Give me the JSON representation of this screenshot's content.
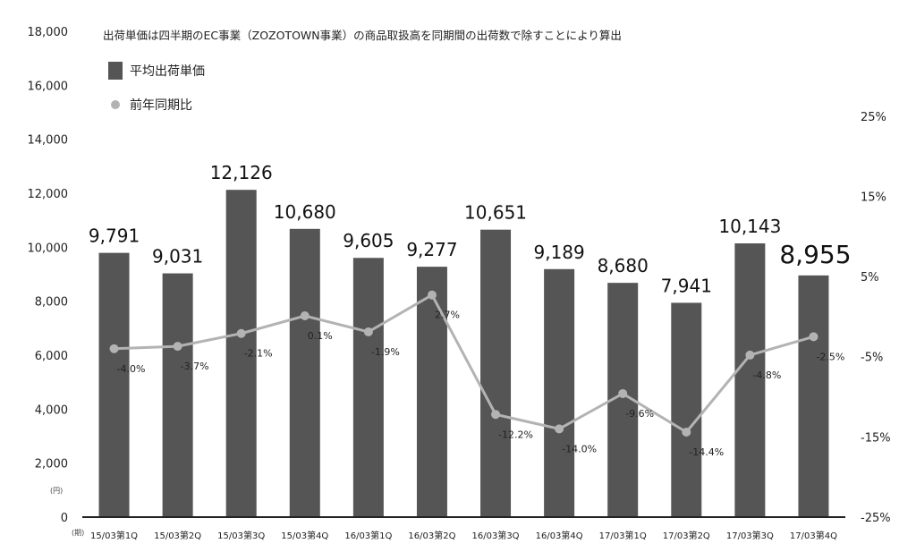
{
  "chart_data": {
    "type": "bar",
    "title": "出荷単価は四半期のEC事業（ZOZOTOWN事業）の商品取扱高を同期間の出荷数で除すことにより算出",
    "left_unit": "(円)",
    "x_unit": "(期)",
    "categories": [
      "15/03第1Q",
      "15/03第2Q",
      "15/03第3Q",
      "15/03第4Q",
      "16/03第1Q",
      "16/03第2Q",
      "16/03第3Q",
      "16/03第4Q",
      "17/03第1Q",
      "17/03第2Q",
      "17/03第3Q",
      "17/03第4Q"
    ],
    "y_left": {
      "min": 0,
      "max": 18000,
      "ticks": [
        0,
        2000,
        4000,
        6000,
        8000,
        10000,
        12000,
        14000,
        16000,
        18000
      ],
      "tick_labels": [
        "0",
        "2,000",
        "4,000",
        "6,000",
        "8,000",
        "10,000",
        "12,000",
        "14,000",
        "16,000",
        "18,000"
      ]
    },
    "y_right": {
      "min": -25,
      "max": 30,
      "ticks": [
        -25,
        -15,
        -5,
        5,
        15,
        25
      ],
      "tick_labels": [
        "-25%",
        "-15%",
        "-5%",
        "5%",
        "15%",
        "25%"
      ]
    },
    "series": [
      {
        "name": "平均出荷単価",
        "type": "bar",
        "color": "#555555",
        "axis": "left",
        "values": [
          9791,
          9031,
          12126,
          10680,
          9605,
          9277,
          10651,
          9189,
          8680,
          7941,
          10143,
          8955
        ],
        "labels": [
          "9,791",
          "9,031",
          "12,126",
          "10,680",
          "9,605",
          "9,277",
          "10,651",
          "9,189",
          "8,680",
          "7,941",
          "10,143",
          "8,955"
        ]
      },
      {
        "name": "前年同期比",
        "type": "line",
        "color": "#b3b3b3",
        "axis": "right",
        "values": [
          -4.0,
          -3.7,
          -2.1,
          0.1,
          -1.9,
          2.7,
          -12.2,
          -14.0,
          -9.6,
          -14.4,
          -4.8,
          -2.5
        ],
        "labels": [
          "-4.0%",
          "-3.7%",
          "-2.1%",
          "0.1%",
          "-1.9%",
          "2.7%",
          "-12.2%",
          "-14.0%",
          "-9.6%",
          "-14.4%",
          "-4.8%",
          "-2.5%"
        ]
      }
    ],
    "legend_position": "top-left",
    "grid": false
  }
}
